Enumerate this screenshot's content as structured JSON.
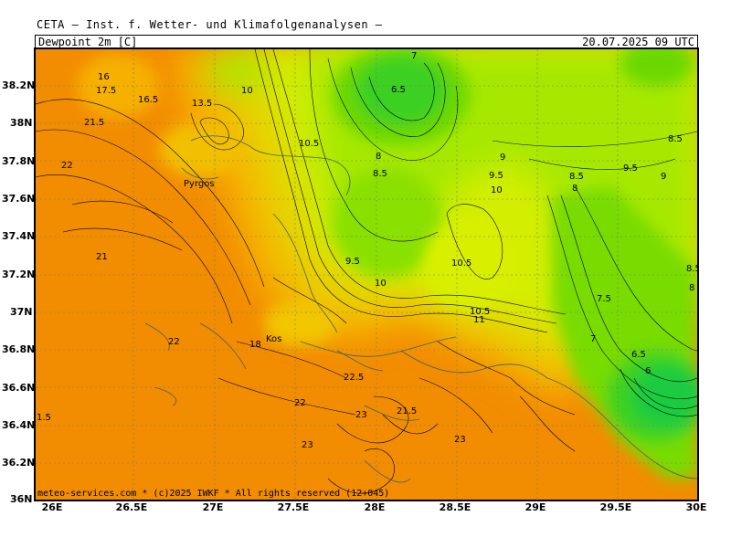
{
  "header": {
    "model_title": "CETA — Inst. f. Wetter- und Klimafolgenanalysen —",
    "parameter": "Dewpoint 2m [C]",
    "valid_time": "20.07.2025 09 UTC"
  },
  "footer": {
    "credit": "meteo-services.com * (c)2025 IWKF * All rights reserved (12+045)"
  },
  "axes": {
    "latitudes": [
      "38.2N",
      "38N",
      "37.8N",
      "37.6N",
      "37.4N",
      "37.2N",
      "37N",
      "36.8N",
      "36.6N",
      "36.4N",
      "36.2N",
      "36N"
    ],
    "longitudes": [
      "26E",
      "26.5E",
      "27E",
      "27.5E",
      "28E",
      "28.5E",
      "29E",
      "29.5E",
      "30E"
    ]
  },
  "map": {
    "place_labels": [
      "Pyrgos",
      "Kos"
    ],
    "contour_labels": [
      "7",
      "6.5",
      "10",
      "10.5",
      "8",
      "8.5",
      "9",
      "9.5",
      "10",
      "8.5",
      "8",
      "9.5",
      "9",
      "8.5",
      "13.5",
      "16",
      "16.5",
      "17.5",
      "21.5",
      "22",
      "21",
      "9.5",
      "10",
      "10.5",
      "8.5",
      "8",
      "7.5",
      "7",
      "6.5",
      "6",
      "11",
      "10.5",
      "18",
      "22",
      "22",
      "22.5",
      "21.5",
      "23",
      "23",
      "23",
      "1.5"
    ],
    "colors": {
      "orange": "#f28c00",
      "orange_light": "#f7a900",
      "yellow": "#f2c800",
      "yellow_green": "#d6f000",
      "light_green": "#a8ea00",
      "green": "#78e000",
      "bright_green": "#3cdc1e",
      "deep_green": "#1ed23c"
    }
  }
}
